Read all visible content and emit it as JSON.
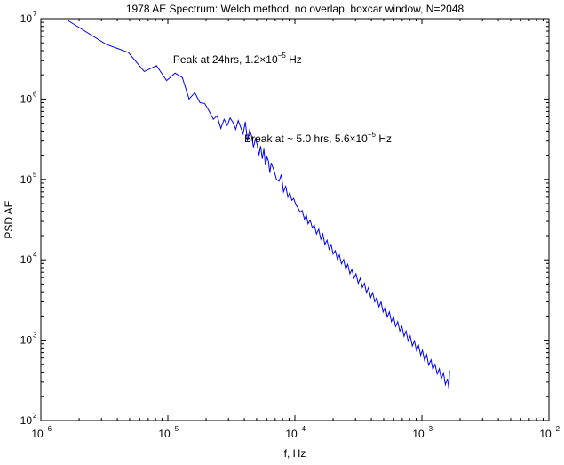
{
  "chart_data": {
    "type": "line",
    "title": "1978 AE Spectrum: Welch method, no overlap, boxcar window, N=2048",
    "xlabel": "f, Hz",
    "ylabel": "PSD AE",
    "xscale": "log",
    "yscale": "log",
    "xlim": [
      1e-06,
      0.01
    ],
    "ylim": [
      100,
      10000000
    ],
    "grid": false,
    "legend": "none",
    "line_color": "#0000ff",
    "x_ticks": [
      {
        "base": "10",
        "exp": "−6",
        "value": 1e-06
      },
      {
        "base": "10",
        "exp": "−5",
        "value": 1e-05
      },
      {
        "base": "10",
        "exp": "−4",
        "value": 0.0001
      },
      {
        "base": "10",
        "exp": "−3",
        "value": 0.001
      },
      {
        "base": "10",
        "exp": "−2",
        "value": 0.01
      }
    ],
    "y_ticks": [
      {
        "base": "10",
        "exp": "2",
        "value": 100
      },
      {
        "base": "10",
        "exp": "3",
        "value": 1000
      },
      {
        "base": "10",
        "exp": "4",
        "value": 10000
      },
      {
        "base": "10",
        "exp": "5",
        "value": 100000
      },
      {
        "base": "10",
        "exp": "6",
        "value": 1000000
      },
      {
        "base": "10",
        "exp": "7",
        "value": 10000000
      }
    ],
    "annotations": [
      {
        "text": "Peak at 24hrs, 1.2×10",
        "exp": "−5",
        "suffix": " Hz",
        "x": 1.1e-05,
        "y": 2800000
      },
      {
        "text": "Break at ~ 5.0 hrs, 5.6×10",
        "exp": "−5",
        "suffix": " Hz",
        "x": 4e-05,
        "y": 290000
      }
    ],
    "series": [
      {
        "x": [
          1.63e-06,
          3.26e-06,
          4.89e-06,
          6.52e-06,
          8.14e-06,
          9.77e-06,
          1.14e-05,
          1.3e-05,
          1.47e-05,
          1.63e-05,
          1.79e-05,
          1.95e-05,
          2.12e-05,
          2.28e-05,
          2.44e-05,
          2.61e-05,
          2.77e-05,
          2.93e-05,
          3.09e-05,
          3.26e-05,
          3.42e-05,
          3.58e-05,
          3.75e-05,
          3.91e-05,
          4.07e-05,
          4.23e-05,
          4.4e-05,
          4.56e-05,
          4.72e-05,
          4.89e-05,
          5.05e-05,
          5.21e-05,
          5.37e-05,
          5.54e-05,
          5.7e-05,
          5.86e-05,
          6.03e-05,
          6.19e-05,
          6.35e-05,
          6.51e-05,
          6.84e-05,
          7.16e-05,
          7.49e-05,
          7.82e-05,
          8.14e-05,
          8.47e-05,
          8.8e-05,
          9.12e-05,
          9.45e-05,
          9.77e-05,
          0.000102,
          0.000106,
          0.00011,
          0.000114,
          0.000119,
          0.000123,
          0.000127,
          0.000132,
          0.000137,
          0.000142,
          0.000148,
          0.000154,
          0.00016,
          0.000166,
          0.000172,
          0.000179,
          0.000186,
          0.000193,
          0.0002,
          0.000208,
          0.000216,
          0.000224,
          0.000233,
          0.000242,
          0.000251,
          0.000261,
          0.000271,
          0.000281,
          0.000292,
          0.000303,
          0.000315,
          0.000327,
          0.00034,
          0.000353,
          0.000366,
          0.00038,
          0.000395,
          0.00041,
          0.000426,
          0.000442,
          0.000459,
          0.000477,
          0.000495,
          0.000514,
          0.000534,
          0.000555,
          0.000576,
          0.000598,
          0.000621,
          0.000645,
          0.00067,
          0.000696,
          0.000723,
          0.00075,
          0.000779,
          0.000809,
          0.00084,
          0.000873,
          0.000906,
          0.000941,
          0.000977,
          0.00101,
          0.00105,
          0.00109,
          0.00113,
          0.00118,
          0.00122,
          0.00127,
          0.00132,
          0.00137,
          0.00142,
          0.00148,
          0.00153,
          0.00159,
          0.00163,
          0.00165
        ],
        "y": [
          9500000,
          4800000,
          3800000,
          2200000,
          2600000,
          1700000,
          2100000,
          1850000,
          1000000,
          1200000,
          900000,
          880000,
          700000,
          560000,
          620000,
          430000,
          560000,
          470000,
          580000,
          510000,
          420000,
          540000,
          440000,
          370000,
          520000,
          300000,
          410000,
          350000,
          250000,
          320000,
          270000,
          200000,
          260000,
          180000,
          240000,
          150000,
          190000,
          170000,
          120000,
          160000,
          130000,
          100000,
          95000,
          115000,
          70000,
          82000,
          60000,
          69000,
          55000,
          58000,
          48000,
          44000,
          39000,
          41000,
          32000,
          36000,
          28000,
          31000,
          25000,
          27000,
          21000,
          24000,
          18000,
          21000,
          15500,
          17500,
          13500,
          15500,
          11800,
          13000,
          10200,
          11500,
          8900,
          10100,
          7700,
          8800,
          6700,
          7600,
          5900,
          6700,
          5100,
          5900,
          4500,
          5100,
          3900,
          4500,
          3400,
          3900,
          3000,
          3400,
          2600,
          3000,
          2250,
          2600,
          1950,
          2250,
          1700,
          1950,
          1480,
          1700,
          1300,
          1480,
          1120,
          1300,
          980,
          1130,
          850,
          980,
          740,
          860,
          650,
          750,
          560,
          660,
          490,
          570,
          430,
          500,
          380,
          440,
          330,
          390,
          280,
          330,
          250,
          420
        ]
      }
    ]
  }
}
